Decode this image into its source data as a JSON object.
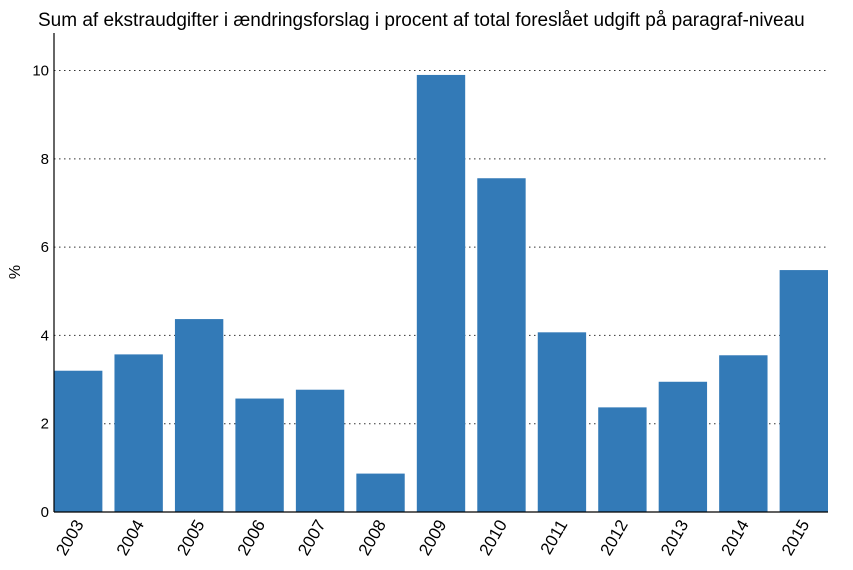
{
  "chart_data": {
    "type": "bar",
    "title": "Sum af ekstraudgifter i ændringsforslag i procent af total foreslået udgift på paragraf-niveau",
    "xlabel": "",
    "ylabel": "%",
    "categories": [
      "2003",
      "2004",
      "2005",
      "2006",
      "2007",
      "2008",
      "2009",
      "2010",
      "2011",
      "2012",
      "2013",
      "2014",
      "2015"
    ],
    "values": [
      3.2,
      3.57,
      4.37,
      2.57,
      2.77,
      0.87,
      9.9,
      7.56,
      4.07,
      2.37,
      2.95,
      3.55,
      5.48
    ],
    "ylim": [
      0,
      10.85
    ],
    "yticks": [
      "0",
      "2",
      "4",
      "6",
      "8",
      "10"
    ],
    "grid": true,
    "bar_color": "#337ab7"
  }
}
